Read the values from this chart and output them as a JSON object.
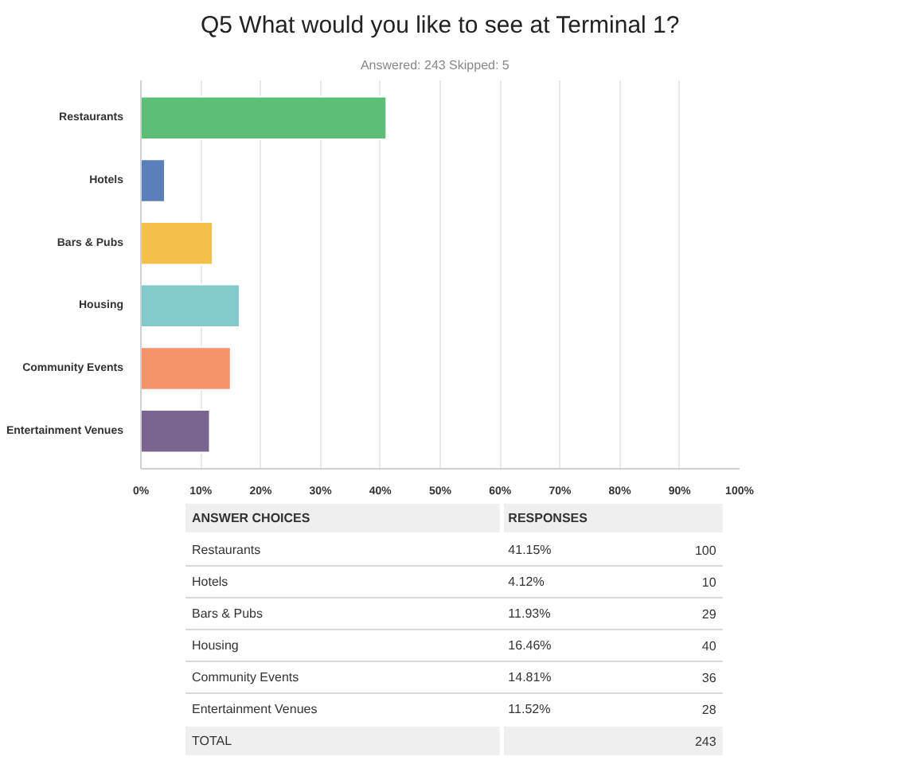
{
  "chart_data": [
    {
      "type": "bar",
      "orientation": "horizontal",
      "title": "Q5 What would you like to see at Terminal 1?",
      "subtitle": "Answered: 243    Skipped: 5",
      "categories": [
        "Restaurants",
        "Hotels",
        "Bars & Pubs",
        "Housing",
        "Community Events",
        "Entertainment Venues"
      ],
      "values": [
        41,
        4,
        12,
        16.5,
        15,
        11.5
      ],
      "colors": [
        "#5cbe77",
        "#5a7fba",
        "#f5c04a",
        "#82c9cc",
        "#f5946a",
        "#7a6591"
      ],
      "xlim": [
        0,
        100
      ],
      "xticks": [
        {
          "value": 0,
          "label": "0%"
        },
        {
          "value": 10,
          "label": "10%"
        },
        {
          "value": 20,
          "label": "20%"
        },
        {
          "value": 30,
          "label": "30%"
        },
        {
          "value": 40,
          "label": "40%"
        },
        {
          "value": 50,
          "label": "50%"
        },
        {
          "value": 60,
          "label": "60%"
        },
        {
          "value": 70,
          "label": "70%"
        },
        {
          "value": 80,
          "label": "80%"
        },
        {
          "value": 90,
          "label": "90%"
        },
        {
          "value": 100,
          "label": "100%"
        }
      ],
      "grid": "x"
    },
    {
      "type": "other",
      "annotations": [
        "ANSWER CHOICES",
        "RESPONSES",
        "Restaurants",
        "41.15%",
        "100",
        "Hotels",
        "4.12%",
        "10",
        "Bars & Pubs",
        "11.93%",
        "29",
        "Housing",
        "16.46%",
        "40",
        "Community Events",
        "14.81%",
        "36",
        "Entertainment Venues",
        "11.52%",
        "28",
        "TOTAL",
        "243"
      ]
    }
  ]
}
